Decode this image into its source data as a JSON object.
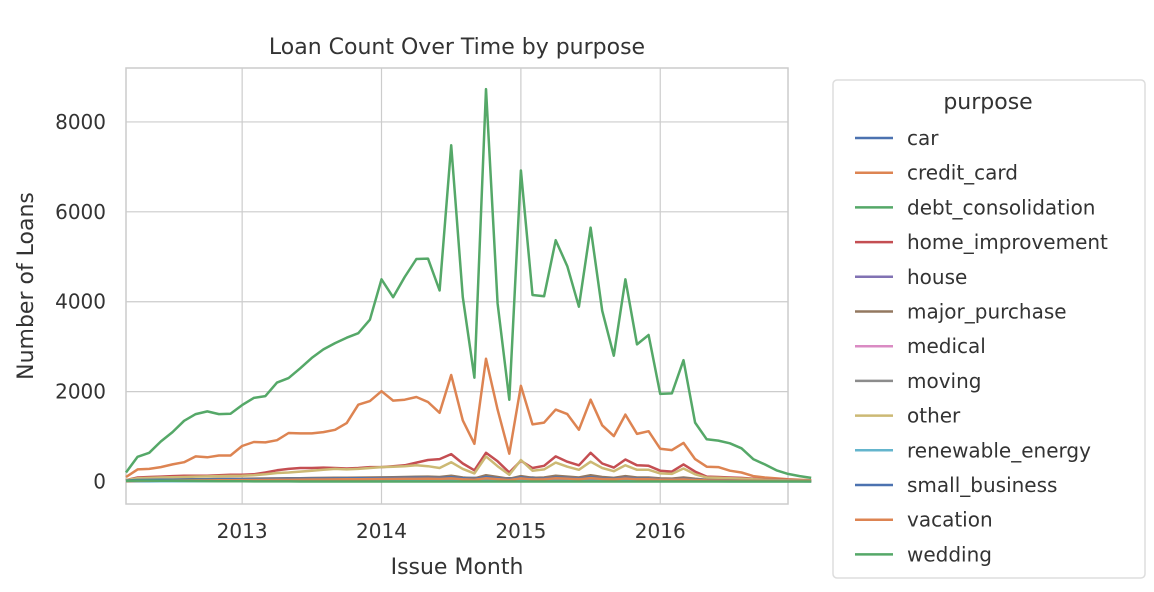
{
  "chart_data": {
    "type": "line",
    "title": "Loan Count Over Time by purpose",
    "xlabel": "Issue Month",
    "ylabel": "Number of Loans",
    "x_start": "2012-03",
    "x_end": "2016-12",
    "xlim": [
      "2012-03",
      "2016-12"
    ],
    "ylim": [
      -500,
      9200
    ],
    "x_ticks": [
      {
        "date": "2013-01",
        "label": "2013"
      },
      {
        "date": "2014-01",
        "label": "2014"
      },
      {
        "date": "2015-01",
        "label": "2015"
      },
      {
        "date": "2016-01",
        "label": "2016"
      }
    ],
    "y_ticks": [
      {
        "value": 0,
        "label": "0"
      },
      {
        "value": 2000,
        "label": "2000"
      },
      {
        "value": 4000,
        "label": "4000"
      },
      {
        "value": 6000,
        "label": "6000"
      },
      {
        "value": 8000,
        "label": "8000"
      }
    ],
    "grid": true,
    "legend": {
      "title": "purpose",
      "placement": "outside right"
    },
    "series": [
      {
        "name": "car",
        "color": "#4c72b0",
        "values": [
          10,
          18,
          20,
          22,
          24,
          26,
          28,
          30,
          32,
          34,
          36,
          38,
          40,
          42,
          44,
          46,
          48,
          50,
          52,
          54,
          56,
          58,
          60,
          62,
          65,
          68,
          70,
          72,
          75,
          78,
          80,
          75,
          70,
          72,
          76,
          90,
          70,
          60,
          80,
          50,
          70,
          60,
          65,
          60,
          70,
          58,
          55,
          60,
          50,
          45,
          40,
          50,
          35,
          30,
          28,
          25,
          22,
          20,
          18,
          15
        ]
      },
      {
        "name": "credit_card",
        "color": "#dd8452",
        "values": [
          100,
          270,
          280,
          320,
          380,
          430,
          560,
          540,
          580,
          580,
          790,
          880,
          870,
          920,
          1080,
          1070,
          1070,
          1100,
          1150,
          1300,
          1710,
          1790,
          2010,
          1800,
          1820,
          1880,
          1770,
          1530,
          2370,
          1360,
          840,
          2730,
          1600,
          620,
          2130,
          1270,
          1310,
          1600,
          1500,
          1150,
          1820,
          1250,
          1010,
          1490,
          1060,
          1120,
          730,
          700,
          860,
          500,
          330,
          320,
          240,
          200,
          120,
          90,
          70,
          50,
          40,
          30
        ]
      },
      {
        "name": "debt_consolidation",
        "color": "#55a868",
        "values": [
          200,
          550,
          640,
          890,
          1100,
          1350,
          1500,
          1560,
          1500,
          1510,
          1700,
          1860,
          1900,
          2200,
          2300,
          2520,
          2750,
          2940,
          3080,
          3200,
          3300,
          3600,
          4500,
          4100,
          4550,
          4950,
          4960,
          4250,
          7480,
          4100,
          2310,
          8730,
          3960,
          1820,
          6920,
          4150,
          4120,
          5370,
          4790,
          3890,
          5650,
          3800,
          2800,
          4500,
          3050,
          3260,
          1950,
          1960,
          2700,
          1310,
          940,
          910,
          850,
          740,
          500,
          380,
          250,
          170,
          120,
          80
        ]
      },
      {
        "name": "home_improvement",
        "color": "#c44e52",
        "values": [
          30,
          90,
          100,
          110,
          120,
          130,
          130,
          130,
          140,
          150,
          150,
          160,
          200,
          250,
          280,
          300,
          300,
          310,
          300,
          290,
          300,
          320,
          320,
          340,
          360,
          420,
          480,
          500,
          610,
          400,
          250,
          640,
          450,
          200,
          460,
          300,
          350,
          560,
          440,
          360,
          640,
          400,
          310,
          490,
          360,
          350,
          240,
          220,
          380,
          220,
          110,
          100,
          90,
          80,
          60,
          50,
          40,
          35,
          30,
          25
        ]
      },
      {
        "name": "house",
        "color": "#8172b3",
        "values": [
          5,
          8,
          9,
          10,
          12,
          14,
          15,
          16,
          18,
          20,
          22,
          24,
          26,
          28,
          30,
          32,
          34,
          36,
          38,
          40,
          42,
          44,
          46,
          48,
          50,
          52,
          54,
          50,
          60,
          45,
          35,
          65,
          50,
          30,
          55,
          40,
          45,
          60,
          55,
          45,
          65,
          50,
          40,
          55,
          45,
          45,
          35,
          32,
          40,
          30,
          20,
          18,
          16,
          14,
          12,
          10,
          9,
          8,
          7,
          6
        ]
      },
      {
        "name": "major_purchase",
        "color": "#937860",
        "values": [
          20,
          40,
          42,
          45,
          48,
          50,
          52,
          55,
          58,
          60,
          62,
          65,
          68,
          70,
          72,
          75,
          78,
          80,
          82,
          85,
          88,
          90,
          92,
          95,
          100,
          105,
          110,
          100,
          130,
          90,
          70,
          140,
          100,
          60,
          120,
          80,
          90,
          130,
          110,
          90,
          140,
          100,
          80,
          120,
          90,
          90,
          70,
          65,
          90,
          60,
          40,
          35,
          30,
          25,
          22,
          20,
          18,
          15,
          12,
          10
        ]
      },
      {
        "name": "medical",
        "color": "#da8bc3",
        "values": [
          10,
          22,
          24,
          26,
          28,
          30,
          32,
          34,
          36,
          38,
          40,
          42,
          44,
          46,
          48,
          50,
          52,
          54,
          56,
          58,
          60,
          62,
          64,
          66,
          68,
          70,
          72,
          65,
          80,
          60,
          45,
          90,
          65,
          40,
          80,
          55,
          60,
          85,
          75,
          60,
          90,
          65,
          55,
          80,
          60,
          60,
          45,
          42,
          55,
          40,
          28,
          25,
          22,
          20,
          18,
          15,
          13,
          11,
          10,
          8
        ]
      },
      {
        "name": "moving",
        "color": "#8c8c8c",
        "values": [
          8,
          15,
          16,
          18,
          20,
          22,
          24,
          26,
          28,
          30,
          32,
          34,
          36,
          38,
          40,
          42,
          44,
          46,
          48,
          50,
          52,
          54,
          56,
          58,
          60,
          62,
          64,
          58,
          70,
          52,
          40,
          75,
          55,
          35,
          70,
          48,
          52,
          72,
          64,
          52,
          76,
          56,
          48,
          68,
          52,
          50,
          40,
          38,
          48,
          35,
          24,
          22,
          20,
          18,
          15,
          13,
          11,
          10,
          9,
          7
        ]
      },
      {
        "name": "other",
        "color": "#ccb974",
        "values": [
          30,
          75,
          80,
          90,
          95,
          100,
          110,
          115,
          120,
          125,
          130,
          140,
          160,
          190,
          200,
          220,
          240,
          260,
          280,
          270,
          280,
          300,
          320,
          330,
          340,
          360,
          340,
          300,
          430,
          280,
          180,
          560,
          340,
          150,
          480,
          240,
          270,
          420,
          330,
          260,
          440,
          300,
          230,
          360,
          260,
          260,
          180,
          170,
          290,
          160,
          90,
          85,
          75,
          65,
          50,
          40,
          32,
          26,
          22,
          18
        ]
      },
      {
        "name": "renewable_energy",
        "color": "#64b5cd",
        "values": [
          2,
          3,
          3,
          4,
          4,
          4,
          5,
          5,
          5,
          5,
          6,
          6,
          6,
          6,
          7,
          7,
          7,
          7,
          8,
          8,
          8,
          8,
          9,
          9,
          9,
          9,
          10,
          9,
          11,
          8,
          6,
          12,
          9,
          5,
          11,
          8,
          8,
          11,
          10,
          8,
          12,
          9,
          7,
          10,
          8,
          8,
          6,
          6,
          7,
          5,
          4,
          4,
          3,
          3,
          3,
          2,
          2,
          2,
          2,
          1
        ]
      },
      {
        "name": "small_business",
        "color": "#4c72b0",
        "values": [
          20,
          35,
          36,
          38,
          40,
          42,
          44,
          46,
          48,
          50,
          52,
          54,
          56,
          58,
          60,
          62,
          64,
          66,
          68,
          70,
          72,
          74,
          76,
          78,
          80,
          82,
          84,
          78,
          95,
          72,
          55,
          100,
          75,
          45,
          92,
          62,
          66,
          90,
          80,
          66,
          96,
          70,
          58,
          85,
          64,
          62,
          48,
          45,
          58,
          42,
          30,
          27,
          24,
          21,
          18,
          15,
          13,
          11,
          9,
          7
        ]
      },
      {
        "name": "vacation",
        "color": "#dd8452",
        "values": [
          5,
          15,
          16,
          18,
          20,
          22,
          24,
          26,
          28,
          30,
          32,
          34,
          36,
          38,
          40,
          42,
          44,
          46,
          48,
          50,
          52,
          54,
          56,
          58,
          60,
          62,
          64,
          58,
          70,
          52,
          40,
          75,
          55,
          35,
          70,
          48,
          52,
          72,
          64,
          52,
          76,
          56,
          48,
          68,
          52,
          50,
          40,
          38,
          48,
          35,
          24,
          22,
          20,
          18,
          15,
          13,
          11,
          10,
          9,
          7
        ]
      },
      {
        "name": "wedding",
        "color": "#55a868",
        "values": [
          15,
          20,
          20,
          18,
          16,
          14,
          12,
          10,
          8,
          6,
          4,
          3,
          2,
          2,
          2,
          1,
          1,
          1,
          1,
          1,
          1,
          1,
          1,
          1,
          1,
          1,
          1,
          1,
          1,
          1,
          1,
          1,
          1,
          1,
          1,
          1,
          1,
          1,
          1,
          1,
          1,
          1,
          1,
          1,
          1,
          1,
          1,
          1,
          1,
          1,
          1,
          1,
          1,
          1,
          1,
          1,
          1,
          1,
          1,
          1
        ]
      }
    ]
  }
}
